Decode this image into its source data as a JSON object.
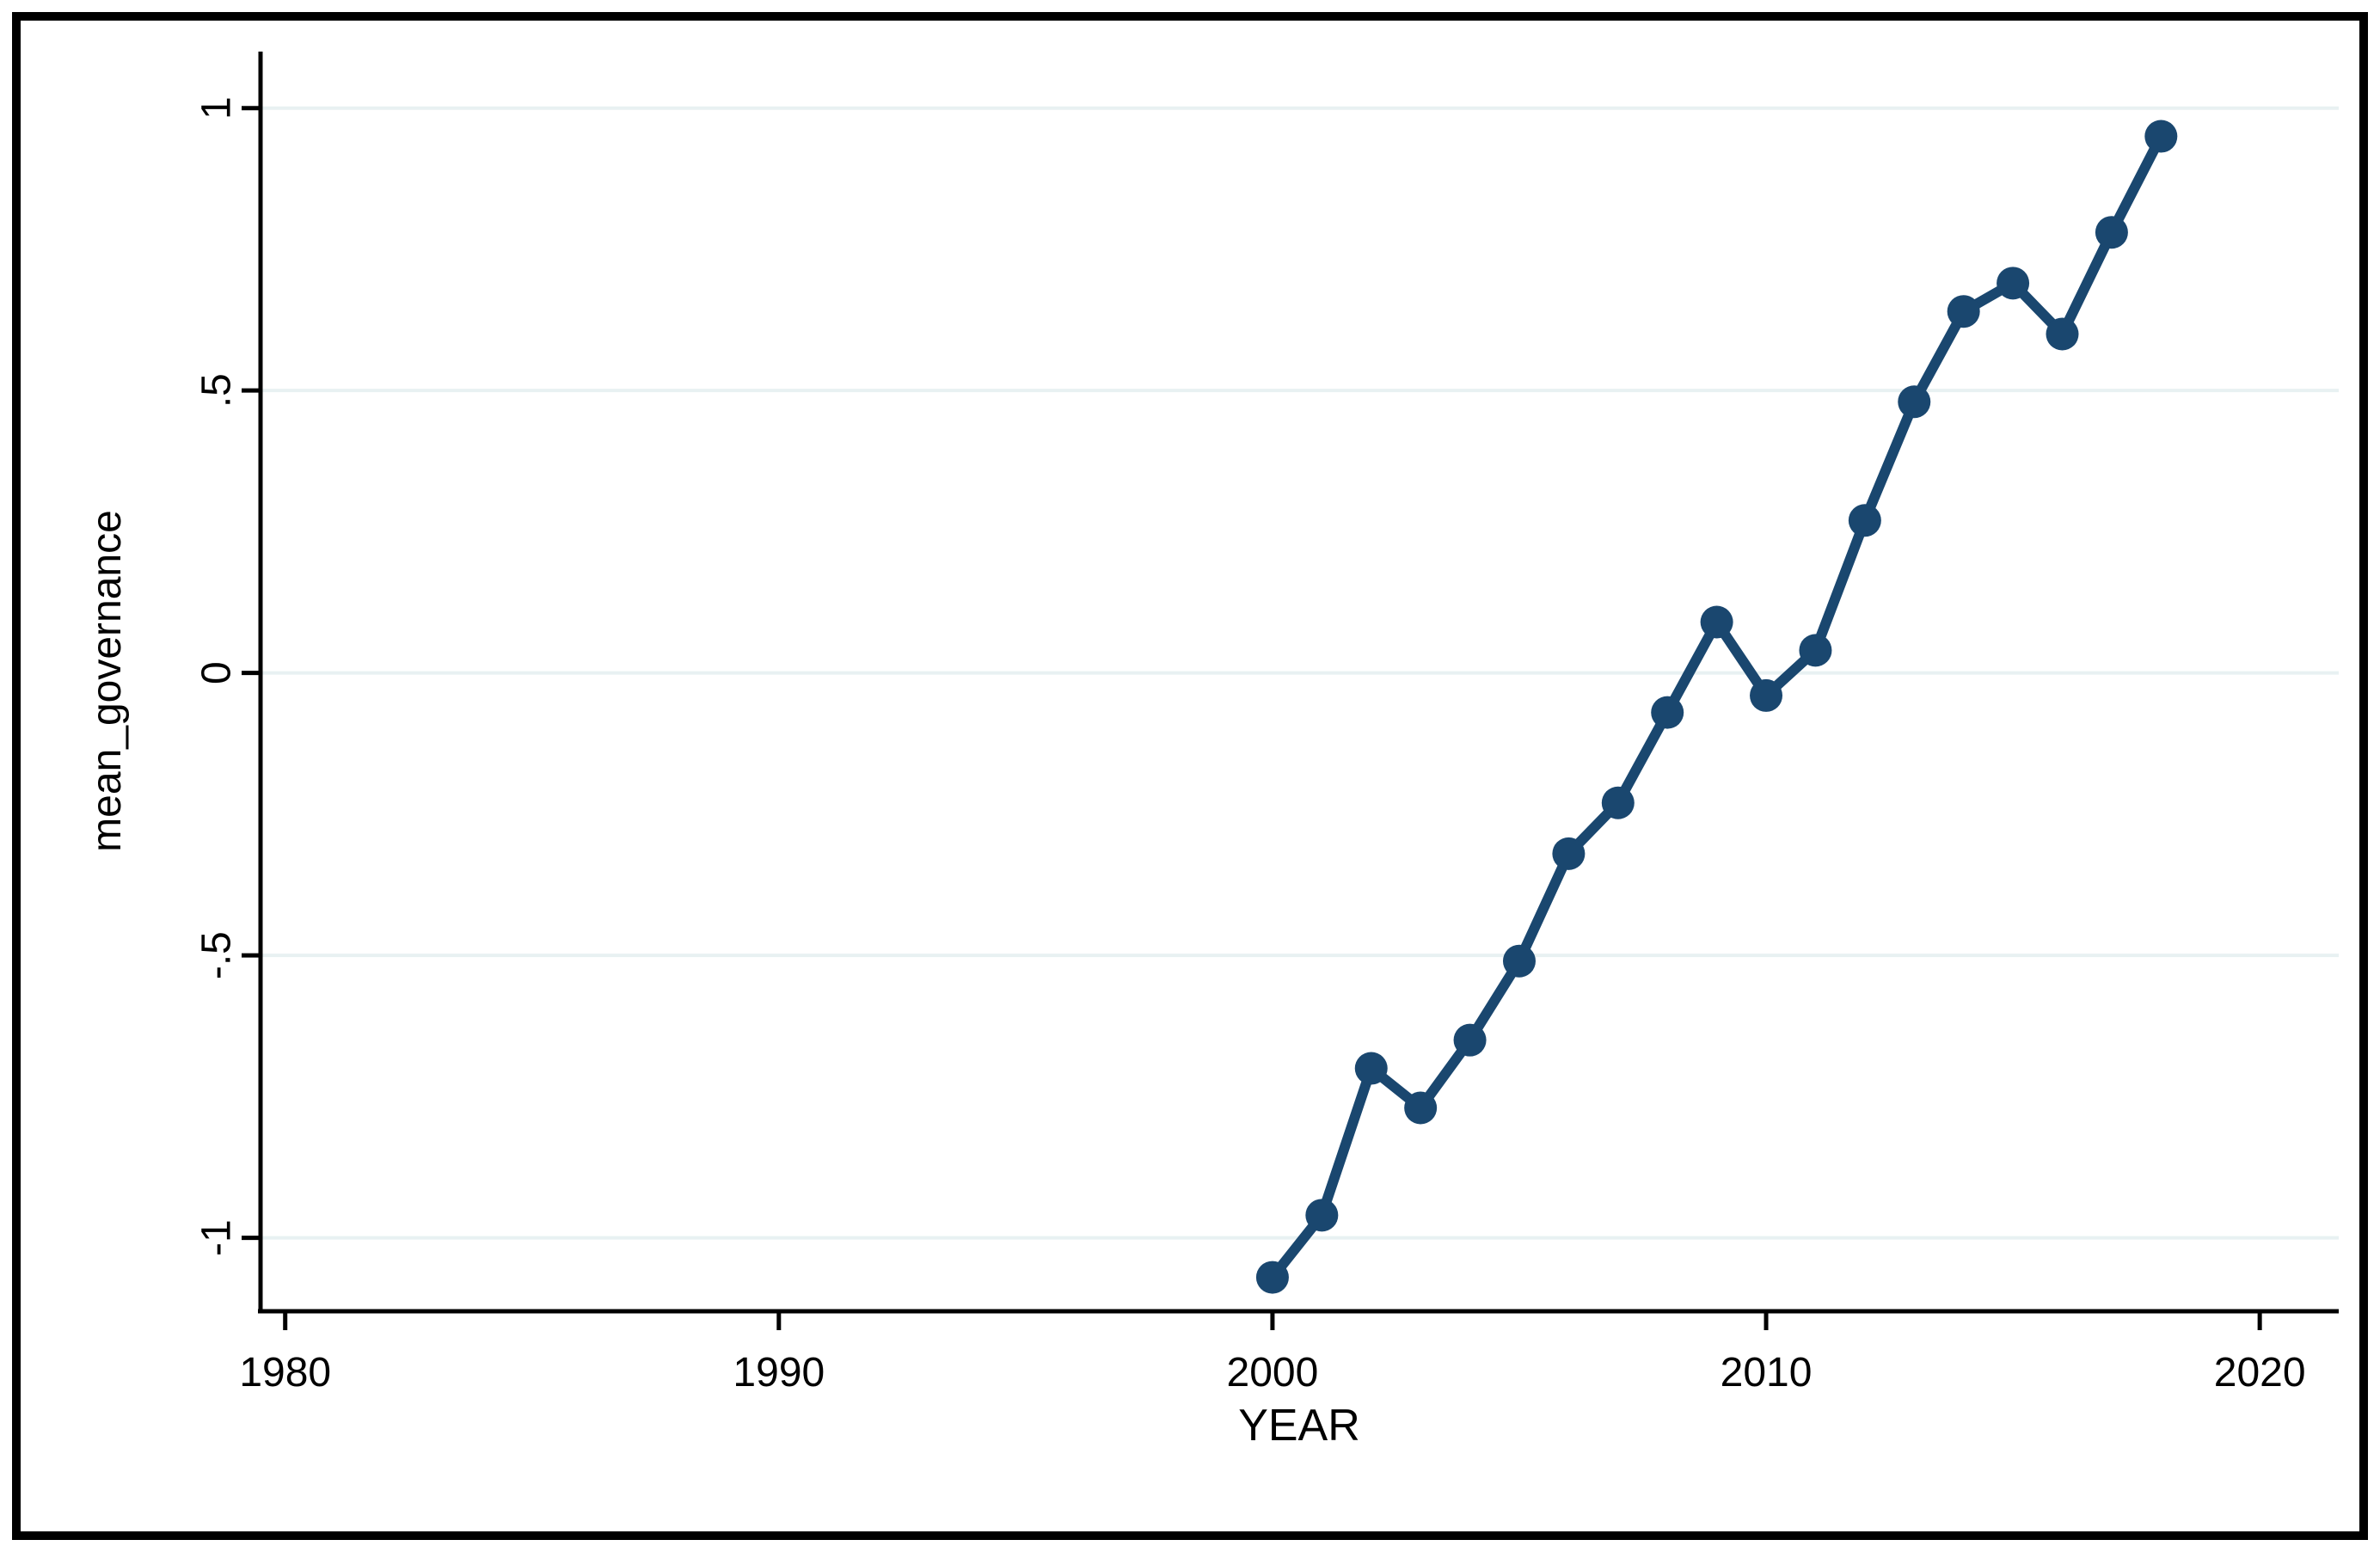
{
  "figure": {
    "background": "#ffffff",
    "border_color": "#000000"
  },
  "chart_data": {
    "type": "line",
    "title": "",
    "xlabel": "YEAR",
    "ylabel": "mean_governance",
    "x": [
      2000,
      2001,
      2002,
      2003,
      2004,
      2005,
      2006,
      2007,
      2008,
      2009,
      2010,
      2011,
      2012,
      2013,
      2014,
      2015,
      2016,
      2017,
      2018
    ],
    "y": [
      -1.07,
      -0.96,
      -0.7,
      -0.77,
      -0.65,
      -0.51,
      -0.32,
      -0.23,
      -0.07,
      0.09,
      -0.04,
      0.04,
      0.27,
      0.48,
      0.64,
      0.69,
      0.6,
      0.78,
      0.95
    ],
    "series_name": "mean_governance",
    "series_color": "#1a476f",
    "marker": "circle",
    "line_width": 12,
    "marker_radius": 19,
    "xticks": {
      "values": [
        1980,
        1990,
        2000,
        2010,
        2020
      ],
      "labels": [
        "1980",
        "1990",
        "2000",
        "2010",
        "2020"
      ]
    },
    "yticks": {
      "values": [
        -1,
        -0.5,
        0,
        0.5,
        1
      ],
      "labels": [
        "-1",
        "-.5",
        "0",
        ".5",
        "1"
      ]
    },
    "xlim": [
      1979.5,
      2021.6
    ],
    "ylim": [
      -1.13,
      1.1
    ],
    "grid": "horizontal",
    "gridline_color": "#e8f1f2",
    "axis_color": "#000000",
    "legend": "none"
  }
}
